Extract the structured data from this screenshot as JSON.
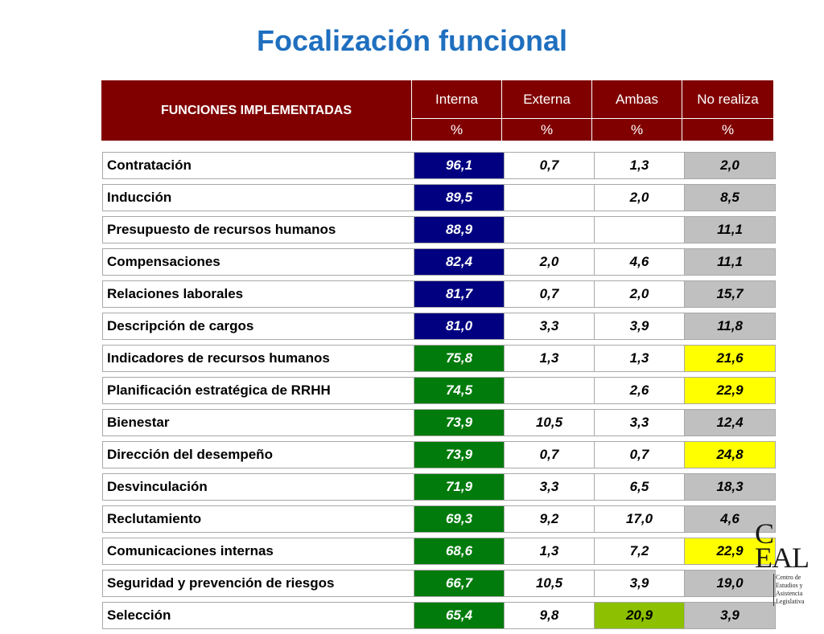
{
  "title": "Focalización funcional",
  "header": {
    "functions_label": "FUNCIONES IMPLEMENTADAS",
    "columns": [
      "Interna",
      "Externa",
      "Ambas",
      "No realiza"
    ],
    "units": [
      "%",
      "%",
      "%",
      "%"
    ]
  },
  "rows": [
    {
      "name": "Contratación",
      "interna": "96,1",
      "externa": "0,7",
      "ambas": "1,3",
      "no_realiza": "2,0"
    },
    {
      "name": "Inducción",
      "interna": "89,5",
      "externa": "",
      "ambas": "2,0",
      "no_realiza": "8,5"
    },
    {
      "name": "Presupuesto de recursos humanos",
      "interna": "88,9",
      "externa": "",
      "ambas": "",
      "no_realiza": "11,1"
    },
    {
      "name": "Compensaciones",
      "interna": "82,4",
      "externa": "2,0",
      "ambas": "4,6",
      "no_realiza": "11,1"
    },
    {
      "name": "Relaciones laborales",
      "interna": "81,7",
      "externa": "0,7",
      "ambas": "2,0",
      "no_realiza": "15,7"
    },
    {
      "name": "Descripción de cargos",
      "interna": "81,0",
      "externa": "3,3",
      "ambas": "3,9",
      "no_realiza": "11,8"
    },
    {
      "name": "Indicadores de recursos humanos",
      "interna": "75,8",
      "externa": "1,3",
      "ambas": "1,3",
      "no_realiza": "21,6"
    },
    {
      "name": "Planificación estratégica de RRHH",
      "interna": "74,5",
      "externa": "",
      "ambas": "2,6",
      "no_realiza": "22,9"
    },
    {
      "name": "Bienestar",
      "interna": "73,9",
      "externa": "10,5",
      "ambas": "3,3",
      "no_realiza": "12,4"
    },
    {
      "name": "Dirección del desempeño",
      "interna": "73,9",
      "externa": "0,7",
      "ambas": "0,7",
      "no_realiza": "24,8"
    },
    {
      "name": "Desvinculación",
      "interna": "71,9",
      "externa": "3,3",
      "ambas": "6,5",
      "no_realiza": "18,3"
    },
    {
      "name": "Reclutamiento",
      "interna": "69,3",
      "externa": "9,2",
      "ambas": "17,0",
      "no_realiza": "4,6"
    },
    {
      "name": "Comunicaciones internas",
      "interna": "68,6",
      "externa": "1,3",
      "ambas": "7,2",
      "no_realiza": "22,9"
    },
    {
      "name": "Seguridad y prevención de riesgos",
      "interna": "66,7",
      "externa": "10,5",
      "ambas": "3,9",
      "no_realiza": "19,0"
    },
    {
      "name": "Selección",
      "interna": "65,4",
      "externa": "9,8",
      "ambas": "20,9",
      "no_realiza": "3,9"
    }
  ],
  "logo": {
    "letters_top": "C",
    "letters_bottom": "EAL",
    "subtitle": [
      "Centro de",
      "Estudios y",
      "Asistencia",
      "Legislativa"
    ]
  },
  "colors": {
    "title": "#1f6fbf",
    "header_bg": "#800000",
    "interna_high": "#000080",
    "interna_mid": "#007b0c",
    "no_realiza_default": "#c0c0c0",
    "no_realiza_highlight": "#ffff00",
    "ambas_highlight": "#8cc000"
  }
}
